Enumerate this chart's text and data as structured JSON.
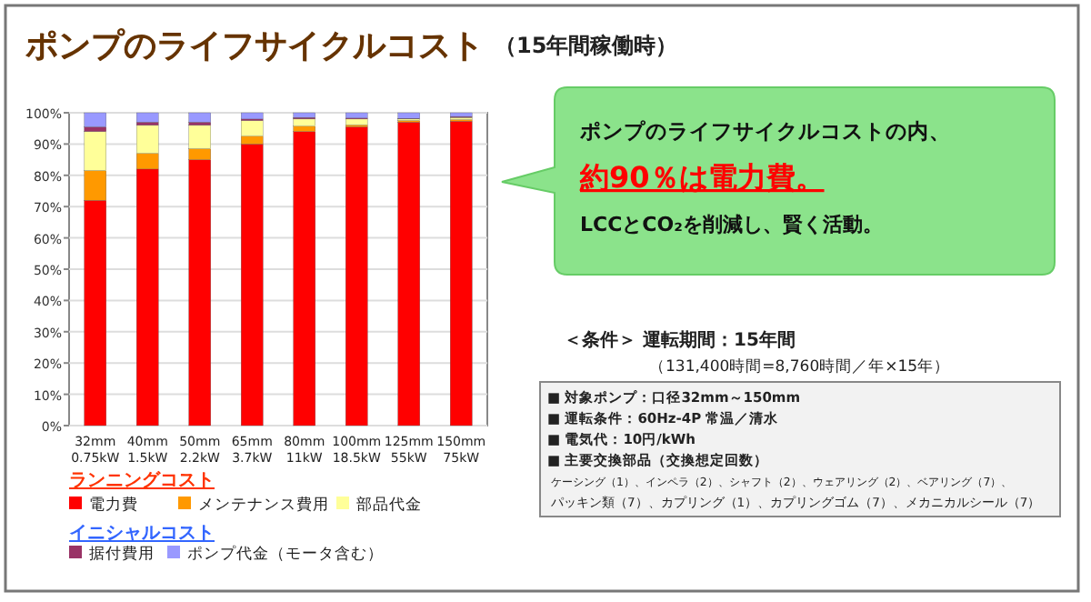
{
  "chart_data": {
    "type": "bar",
    "stacked": true,
    "title": "ポンプのライフサイクルコスト",
    "subtitle": "（15年間稼働時）",
    "categories": [
      "32mm\n0.75kW",
      "40mm\n1.5kW",
      "50mm\n2.2kW",
      "65mm\n3.7kW",
      "80mm\n11kW",
      "100mm\n18.5kW",
      "125mm\n55kW",
      "150mm\n75kW"
    ],
    "series": [
      {
        "name": "電力費",
        "color": "#ff0000",
        "values": [
          72,
          82,
          85,
          90,
          94,
          95.5,
          97,
          97.3
        ]
      },
      {
        "name": "メンテナンス費用",
        "color": "#ff9900",
        "values": [
          9.5,
          5,
          3.5,
          2.5,
          1.7,
          0.6,
          0.5,
          0.5
        ]
      },
      {
        "name": "部品代金",
        "color": "#ffff99",
        "values": [
          12.5,
          9,
          7.5,
          5,
          2.3,
          1.9,
          0.5,
          0.7
        ]
      },
      {
        "name": "据付費用",
        "color": "#993366",
        "values": [
          1.5,
          1,
          1,
          0.5,
          0.5,
          0.3,
          0.2,
          0.3
        ]
      },
      {
        "name": "ポンプ代金（モータ含む）",
        "color": "#9999ff",
        "values": [
          4.5,
          3,
          3,
          2,
          1.5,
          1.7,
          1.8,
          1.2
        ]
      }
    ],
    "ylim": [
      0,
      100
    ],
    "yticks": [
      {
        "value": 0,
        "label": "0%"
      },
      {
        "value": 10,
        "label": "10%"
      },
      {
        "value": 20,
        "label": "20%"
      },
      {
        "value": 30,
        "label": "30%"
      },
      {
        "value": 40,
        "label": "40%"
      },
      {
        "value": 50,
        "label": "50%"
      },
      {
        "value": 60,
        "label": "60%"
      },
      {
        "value": 70,
        "label": "70%"
      },
      {
        "value": 80,
        "label": "80%"
      },
      {
        "value": 90,
        "label": "90%"
      },
      {
        "value": 100,
        "label": "100%"
      }
    ],
    "grid": "y",
    "legend": "bottom",
    "annotations": [
      "ランニングコスト",
      "イニシャルコスト",
      "ポンプのライフサイクルコストの内、",
      "約90％は電力費。",
      "LCCとCO₂を削減し、賢く活動。",
      "＜条件＞ 運転期間：15年間",
      "（131,400時間=8,760時間／年×15年）",
      "■ 対象ポンプ：口径32mm～150mm",
      "■ 運転条件：60Hz-4P 常温／清水",
      "■ 電気代：10円/kWh",
      "■ 主要交換部品（交換想定回数）",
      "ケーシング（1）、インペラ（2）、シャフト（2）、ウェアリング（2）、ベアリング（7）、",
      "パッキン類（7）、カプリング（1）、カプリングゴム（7）、メカニカルシール（7）"
    ]
  }
}
